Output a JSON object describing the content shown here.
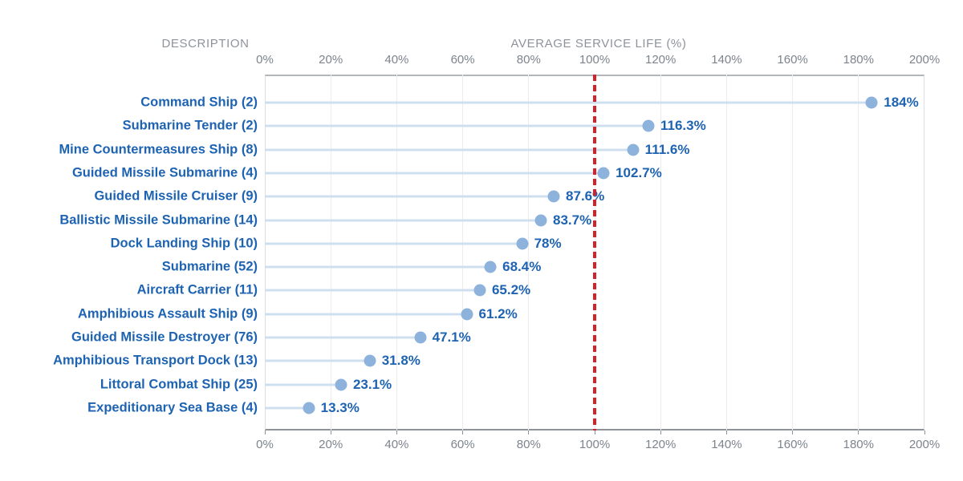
{
  "header": {
    "description_label": "DESCRIPTION",
    "value_axis_label": "AVERAGE SERVICE LIFE (%)"
  },
  "chart_data": {
    "type": "scatter",
    "subtype": "lollipop",
    "title": "",
    "xlabel": "AVERAGE SERVICE LIFE (%)",
    "ylabel": "DESCRIPTION",
    "xlim": [
      0,
      200
    ],
    "x_tick_step": 20,
    "x_ticks": [
      "0%",
      "20%",
      "40%",
      "60%",
      "80%",
      "100%",
      "120%",
      "140%",
      "160%",
      "180%",
      "200%"
    ],
    "x_tick_values": [
      0,
      20,
      40,
      60,
      80,
      100,
      120,
      140,
      160,
      180,
      200
    ],
    "grid": "vertical",
    "axis_labels_position": "top-and-bottom",
    "reference_line": {
      "value": 100,
      "style": "dashed",
      "color": "#d2232a"
    },
    "rows": [
      {
        "category": "Command Ship (2)",
        "value": 184,
        "display": "184%"
      },
      {
        "category": "Submarine Tender (2)",
        "value": 116.3,
        "display": "116.3%"
      },
      {
        "category": "Mine Countermeasures Ship (8)",
        "value": 111.6,
        "display": "111.6%"
      },
      {
        "category": "Guided Missile Submarine (4)",
        "value": 102.7,
        "display": "102.7%"
      },
      {
        "category": "Guided Missile Cruiser (9)",
        "value": 87.6,
        "display": "87.6%"
      },
      {
        "category": "Ballistic Missile Submarine (14)",
        "value": 83.7,
        "display": "83.7%"
      },
      {
        "category": "Dock Landing Ship (10)",
        "value": 78,
        "display": "78%"
      },
      {
        "category": "Submarine (52)",
        "value": 68.4,
        "display": "68.4%"
      },
      {
        "category": "Aircraft Carrier (11)",
        "value": 65.2,
        "display": "65.2%"
      },
      {
        "category": "Amphibious Assault Ship (9)",
        "value": 61.2,
        "display": "61.2%"
      },
      {
        "category": "Guided Missile Destroyer (76)",
        "value": 47.1,
        "display": "47.1%"
      },
      {
        "category": "Amphibious Transport Dock (13)",
        "value": 31.8,
        "display": "31.8%"
      },
      {
        "category": "Littoral Combat Ship (25)",
        "value": 23.1,
        "display": "23.1%"
      },
      {
        "category": "Expeditionary Sea Base (4)",
        "value": 13.3,
        "display": "13.3%"
      }
    ]
  },
  "colors": {
    "category_text": "#1e63b2",
    "value_text": "#1e63b2",
    "dot_fill": "#8db3dc",
    "stem": "#cfdfef",
    "reference_line": "#d2232a",
    "gridline": "#ececec",
    "axis_line": "#8e9399",
    "tick_text": "#7d848d",
    "header_text": "#8e939b"
  }
}
